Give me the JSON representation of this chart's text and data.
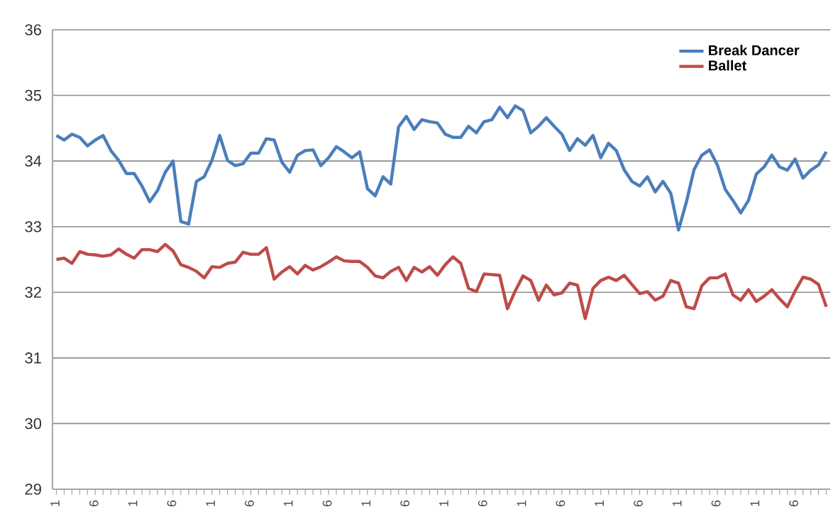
{
  "chart_data": {
    "type": "line",
    "categories": [
      "1",
      null,
      null,
      null,
      null,
      "6",
      null,
      null,
      null,
      null,
      "1",
      null,
      null,
      null,
      null,
      "6",
      null,
      null,
      null,
      null,
      "1",
      null,
      null,
      null,
      null,
      "6",
      null,
      null,
      null,
      null,
      "1",
      null,
      null,
      null,
      null,
      "6",
      null,
      null,
      null,
      null,
      "1",
      null,
      null,
      null,
      null,
      "6",
      null,
      null,
      null,
      null,
      "1",
      null,
      null,
      null,
      null,
      "6",
      null,
      null,
      null,
      null,
      "1",
      null,
      null,
      null,
      null,
      "6",
      null,
      null,
      null,
      null,
      "1",
      null,
      null,
      null,
      null,
      "6",
      null,
      null,
      null,
      null,
      "1",
      null,
      null,
      null,
      null,
      "6",
      null,
      null,
      null,
      null,
      "1",
      null,
      null,
      null,
      null,
      "6",
      null,
      null,
      null,
      null
    ],
    "series": [
      {
        "name": "Break Dancer",
        "color": "#4a7ebb",
        "values": [
          34.39,
          34.32,
          34.41,
          34.36,
          34.23,
          34.32,
          34.39,
          34.16,
          34.01,
          33.81,
          33.81,
          33.62,
          33.38,
          33.55,
          33.83,
          34.0,
          33.08,
          33.04,
          33.69,
          33.76,
          34.01,
          34.39,
          34.01,
          33.93,
          33.96,
          34.12,
          34.12,
          34.34,
          34.32,
          33.98,
          33.83,
          34.09,
          34.16,
          34.17,
          33.93,
          34.05,
          34.22,
          34.14,
          34.05,
          34.14,
          33.58,
          33.47,
          33.76,
          33.65,
          34.52,
          34.68,
          34.48,
          34.63,
          34.6,
          34.58,
          34.41,
          34.36,
          34.36,
          34.53,
          34.43,
          34.6,
          34.63,
          34.82,
          34.66,
          34.84,
          34.77,
          34.43,
          34.53,
          34.66,
          34.53,
          34.41,
          34.16,
          34.34,
          34.24,
          34.39,
          34.05,
          34.27,
          34.16,
          33.87,
          33.69,
          33.62,
          33.76,
          33.53,
          33.69,
          33.51,
          32.95,
          33.37,
          33.87,
          34.09,
          34.17,
          33.94,
          33.57,
          33.4,
          33.21,
          33.4,
          33.8,
          33.91,
          34.09,
          33.91,
          33.86,
          34.03,
          33.74,
          33.86,
          33.94,
          34.14
        ]
      },
      {
        "name": "Ballet",
        "color": "#be4b48",
        "values": [
          32.5,
          32.52,
          32.44,
          32.62,
          32.58,
          32.57,
          32.55,
          32.57,
          32.66,
          32.58,
          32.52,
          32.65,
          32.65,
          32.62,
          32.73,
          32.63,
          32.42,
          32.38,
          32.32,
          32.22,
          32.39,
          32.38,
          32.44,
          32.46,
          32.61,
          32.58,
          32.58,
          32.68,
          32.2,
          32.31,
          32.39,
          32.28,
          32.41,
          32.34,
          32.39,
          32.46,
          32.54,
          32.48,
          32.47,
          32.47,
          32.38,
          32.25,
          32.22,
          32.32,
          32.38,
          32.18,
          32.38,
          32.31,
          32.39,
          32.26,
          32.42,
          32.54,
          32.44,
          32.06,
          32.01,
          32.28,
          32.27,
          32.26,
          31.75,
          32.02,
          32.25,
          32.18,
          31.88,
          32.11,
          31.96,
          31.99,
          32.14,
          32.11,
          31.6,
          32.06,
          32.18,
          32.23,
          32.18,
          32.26,
          32.12,
          31.98,
          32.01,
          31.88,
          31.94,
          32.18,
          32.14,
          31.78,
          31.75,
          32.1,
          32.22,
          32.22,
          32.28,
          31.96,
          31.88,
          32.04,
          31.86,
          31.94,
          32.04,
          31.9,
          31.78,
          32.02,
          32.23,
          32.2,
          32.12,
          31.78
        ]
      }
    ],
    "ylim": [
      29,
      36
    ],
    "yticks": [
      29,
      30,
      31,
      32,
      33,
      34,
      35,
      36
    ],
    "grid": "y",
    "legend": "top right"
  }
}
